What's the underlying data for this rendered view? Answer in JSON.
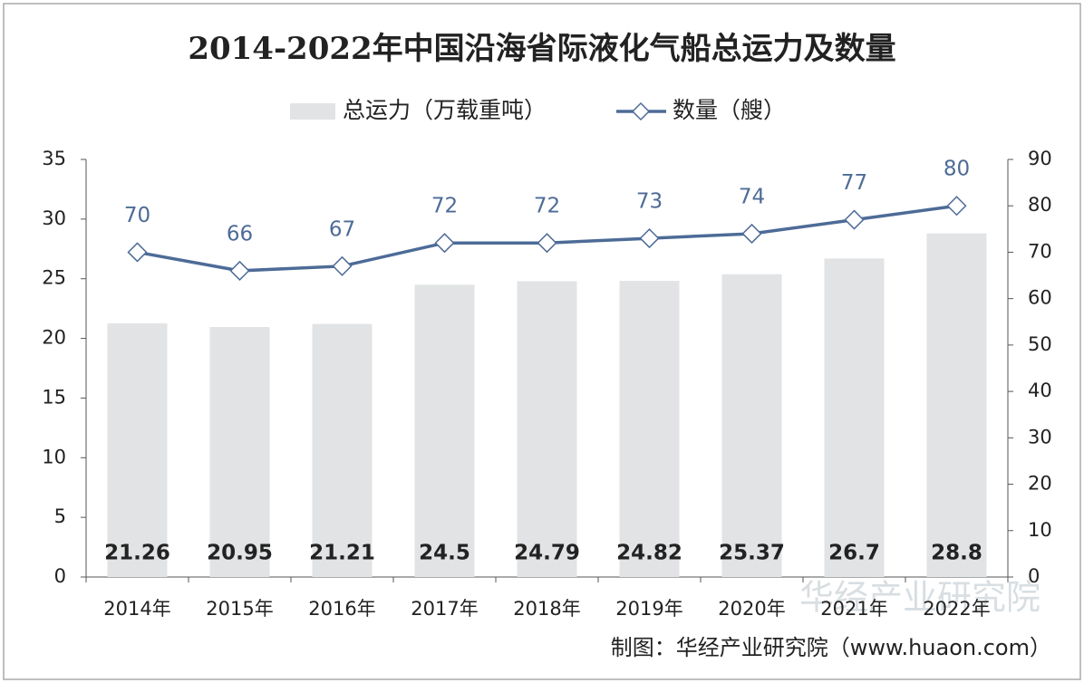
{
  "chart_data": {
    "type": "combo",
    "title": "2014-2022年中国沿海省际液化气船总运力及数量",
    "categories": [
      "2014年",
      "2015年",
      "2016年",
      "2017年",
      "2018年",
      "2019年",
      "2020年",
      "2021年",
      "2022年"
    ],
    "series": [
      {
        "name": "总运力（万载重吨）",
        "type": "bar",
        "color": "#e1e3e5",
        "values": [
          21.26,
          20.95,
          21.21,
          24.5,
          24.79,
          24.82,
          25.37,
          26.7,
          28.8
        ]
      },
      {
        "name": "数量（艘）",
        "type": "line",
        "axis": "y2",
        "color": "#4d6b97",
        "values": [
          70,
          66,
          67,
          72,
          72,
          73,
          74,
          77,
          80
        ]
      }
    ],
    "ylim": [
      0,
      35
    ],
    "yticks": [
      0,
      5,
      10,
      15,
      20,
      25,
      30,
      35
    ],
    "y2lim": [
      0,
      90
    ],
    "y2ticks": [
      0,
      10,
      20,
      30,
      40,
      50,
      60,
      70,
      80,
      90
    ],
    "legend": "top",
    "source": "制图：华经产业研究院（www.huaon.com）",
    "watermark": "华经产业研究院"
  }
}
